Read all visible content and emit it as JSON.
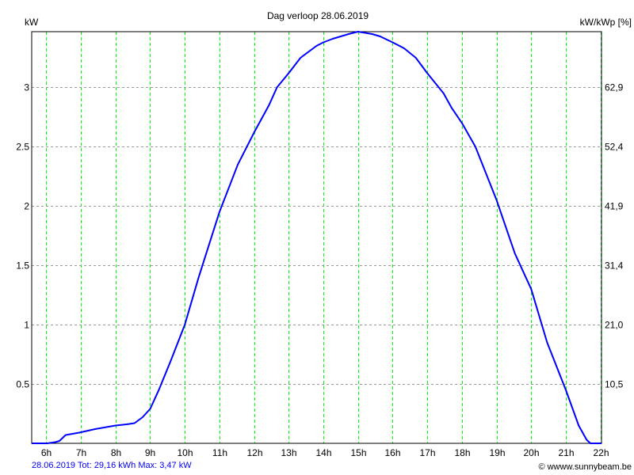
{
  "chart_data": {
    "type": "line",
    "title": "Dag  verloop 28.06.2019",
    "ylabel": "kW",
    "ylabel_right": "kW/kWp [%]",
    "xlim": [
      5.58,
      22.03
    ],
    "ylim": [
      0,
      3.47
    ],
    "grid": true,
    "x_ticks": [
      6,
      7,
      8,
      9,
      10,
      11,
      12,
      13,
      14,
      15,
      16,
      17,
      18,
      19,
      20,
      21,
      22
    ],
    "x_tick_labels": [
      "6h",
      "7h",
      "8h",
      "9h",
      "10h",
      "11h",
      "12h",
      "13h",
      "14h",
      "15h",
      "16h",
      "17h",
      "18h",
      "19h",
      "20h",
      "21h",
      "22h"
    ],
    "y_ticks": [
      0.5,
      1,
      1.5,
      2,
      2.5,
      3
    ],
    "y_tick_labels": [
      "0.5",
      "1",
      "1.5",
      "2",
      "2.5",
      "3"
    ],
    "y_right_tick_labels": [
      "10,5",
      "21,0",
      "31,4",
      "41,9",
      "52,4",
      "62,9"
    ],
    "series": [
      {
        "color": "#0000ff",
        "x": [
          5.58,
          6.03,
          6.26,
          6.38,
          6.56,
          6.95,
          7.41,
          8.0,
          8.32,
          8.55,
          8.78,
          9.0,
          9.25,
          9.6,
          10,
          10.4,
          11,
          11.53,
          12,
          12.43,
          12.66,
          13,
          13.34,
          13.8,
          14,
          14.27,
          14.73,
          15,
          15.41,
          15.64,
          16,
          16.33,
          16.67,
          17,
          17.47,
          17.7,
          18,
          18.39,
          19,
          19.53,
          20,
          20.46,
          21,
          21.37,
          21.6,
          21.71,
          22.03
        ],
        "y": [
          0,
          0,
          0.01,
          0.02,
          0.07,
          0.09,
          0.12,
          0.15,
          0.16,
          0.17,
          0.22,
          0.29,
          0.45,
          0.7,
          1.0,
          1.4,
          1.95,
          2.35,
          2.62,
          2.85,
          3.0,
          3.12,
          3.25,
          3.35,
          3.38,
          3.41,
          3.45,
          3.47,
          3.45,
          3.43,
          3.38,
          3.33,
          3.25,
          3.12,
          2.95,
          2.83,
          2.7,
          2.5,
          2.05,
          1.6,
          1.3,
          0.85,
          0.45,
          0.15,
          0.03,
          0,
          0
        ]
      }
    ],
    "grid_color": "#00ff00"
  },
  "footer": {
    "summary": "28.06.2019 Tot: 29,16 kWh Max: 3,47 kW",
    "copyright": "© wwww.sunnybeam.be"
  }
}
